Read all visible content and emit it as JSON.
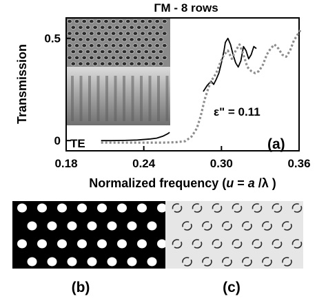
{
  "chart_data": {
    "type": "line",
    "title": "ΓM - 8 rows",
    "xlabel_prefix": "Normalized frequency (",
    "xlabel_var": "u",
    "xlabel_eq": " = ",
    "xlabel_a": "a",
    "xlabel_slash": " /λ )",
    "ylabel": "Transmission",
    "xlim": [
      0.18,
      0.36
    ],
    "ylim": [
      -0.05,
      0.6
    ],
    "x_ticks": [
      "0.18",
      "0.24",
      "0.30",
      "0.36"
    ],
    "x_tick_values": [
      0.18,
      0.24,
      0.3,
      0.36
    ],
    "y_ticks": [
      "0",
      "0.5"
    ],
    "y_tick_values": [
      0,
      0.5
    ],
    "annotation_eps": "ε\" = 0.11",
    "annotation_mode": "TE",
    "panel_label": "(a)",
    "series": [
      {
        "style": "solid-black",
        "segments": [
          {
            "x": [
              0.207,
              0.215,
              0.225,
              0.235,
              0.245,
              0.25,
              0.255,
              0.258,
              0.26
            ],
            "y": [
              0.0,
              0.0,
              0.001,
              0.003,
              0.008,
              0.012,
              0.022,
              0.032,
              0.04
            ]
          },
          {
            "x": [
              0.286,
              0.289,
              0.292,
              0.294,
              0.296,
              0.298,
              0.3,
              0.302,
              0.303,
              0.305,
              0.307,
              0.309,
              0.311,
              0.313,
              0.315,
              0.317,
              0.319,
              0.321,
              0.323,
              0.325,
              0.327
            ],
            "y": [
              0.24,
              0.27,
              0.29,
              0.275,
              0.3,
              0.33,
              0.38,
              0.44,
              0.48,
              0.5,
              0.47,
              0.42,
              0.38,
              0.36,
              0.39,
              0.46,
              0.44,
              0.4,
              0.42,
              0.46,
              0.45
            ]
          }
        ]
      },
      {
        "style": "dotted-gray",
        "segments": [
          {
            "x": [
              0.207,
              0.22,
              0.24,
              0.255,
              0.265,
              0.272,
              0.277,
              0.281,
              0.284,
              0.287,
              0.29,
              0.293,
              0.296,
              0.299,
              0.302,
              0.305,
              0.308,
              0.311,
              0.314,
              0.317,
              0.32,
              0.323,
              0.326,
              0.329,
              0.332,
              0.335,
              0.338,
              0.341,
              0.344,
              0.347,
              0.35,
              0.353,
              0.356,
              0.359,
              0.361
            ],
            "y": [
              -0.01,
              -0.01,
              -0.01,
              -0.01,
              -0.008,
              -0.003,
              0.02,
              0.06,
              0.12,
              0.2,
              0.26,
              0.3,
              0.33,
              0.38,
              0.42,
              0.44,
              0.4,
              0.44,
              0.47,
              0.42,
              0.36,
              0.34,
              0.33,
              0.34,
              0.37,
              0.42,
              0.45,
              0.47,
              0.45,
              0.42,
              0.41,
              0.44,
              0.49,
              0.52,
              0.54
            ]
          }
        ]
      }
    ],
    "grid": false,
    "legend": "none"
  },
  "panels": {
    "b_label": "(b)",
    "c_label": "(c)"
  }
}
